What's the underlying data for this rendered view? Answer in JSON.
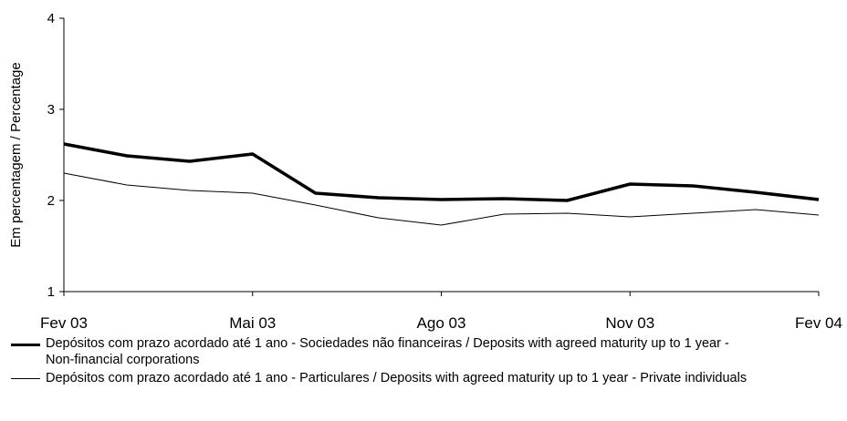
{
  "chart_data": {
    "type": "line",
    "y_label": "Em percentagem / Percentage",
    "categories": [
      "Fev 03",
      null,
      null,
      "Mai 03",
      null,
      null,
      "Ago 03",
      null,
      null,
      "Nov 03",
      null,
      null,
      "Fev 04"
    ],
    "series": [
      {
        "name": "Depósitos com prazo acordado até 1 ano - Sociedades não financeiras / Deposits with agreed maturity up to 1 year - Non-financial corporations",
        "color": "#000000",
        "width": 3.5,
        "values": [
          2.62,
          2.49,
          2.43,
          2.51,
          2.08,
          2.03,
          2.01,
          2.02,
          2.0,
          2.18,
          2.16,
          2.09,
          2.01
        ]
      },
      {
        "name": "Depósitos com prazo acordado até 1 ano - Particulares  / Deposits with agreed maturity up to 1 year - Private individuals",
        "color": "#000000",
        "width": 1,
        "values": [
          2.3,
          2.17,
          2.11,
          2.08,
          1.95,
          1.81,
          1.73,
          1.85,
          1.86,
          1.82,
          1.86,
          1.9,
          1.84
        ]
      }
    ],
    "ylim": [
      1,
      4
    ],
    "yticks": [
      1,
      2,
      3,
      4
    ],
    "grid": false
  }
}
